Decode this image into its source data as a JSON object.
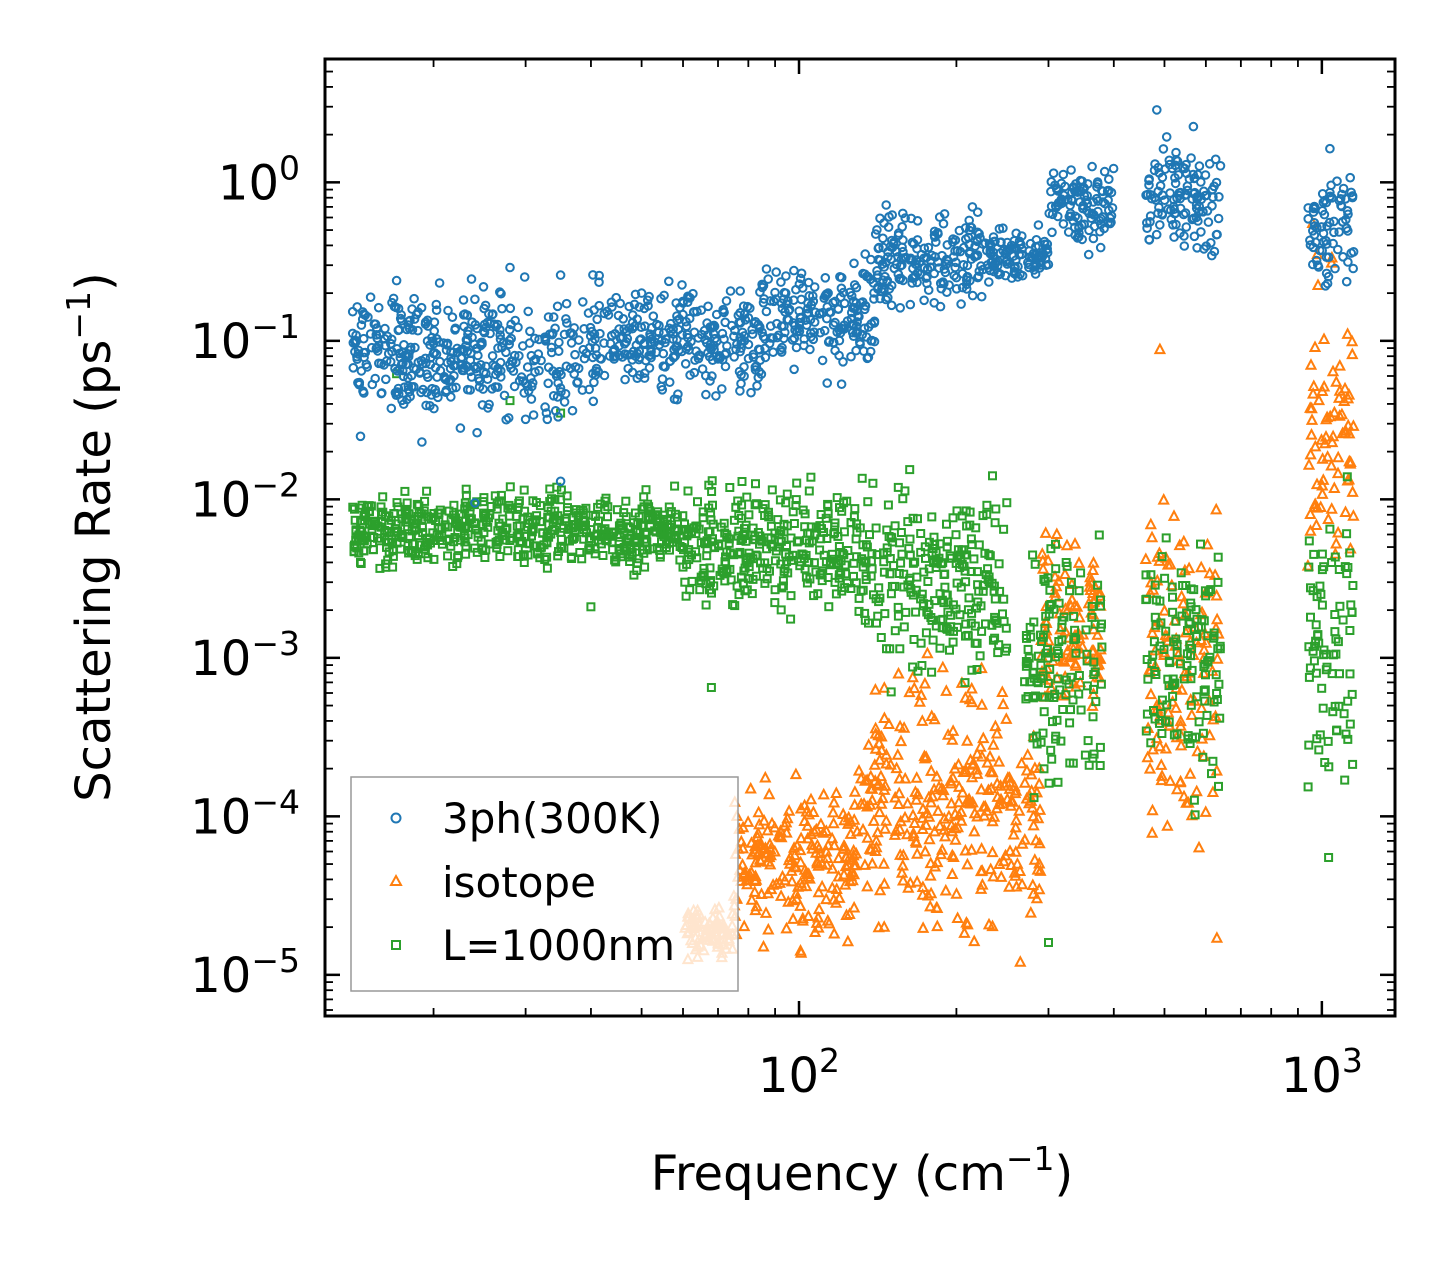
{
  "chart_data": {
    "type": "scatter",
    "xscale": "log",
    "yscale": "log",
    "xlabel": "Frequency (cm",
    "xlabel_sup": "−1",
    "xlabel_end": ")",
    "ylabel": "Scattering Rate (ps",
    "ylabel_sup": "−1",
    "ylabel_end": ")",
    "xlim": [
      12.4,
      1380
    ],
    "ylim": [
      5.5e-06,
      6.0
    ],
    "x_ticks": [
      {
        "value": 100,
        "base": "10",
        "exp": "2"
      },
      {
        "value": 1000,
        "base": "10",
        "exp": "3"
      }
    ],
    "y_ticks": [
      {
        "value": 1,
        "base": "10",
        "exp": "0"
      },
      {
        "value": 0.1,
        "base": "10",
        "exp": "−1"
      },
      {
        "value": 0.01,
        "base": "10",
        "exp": "−2"
      },
      {
        "value": 0.001,
        "base": "10",
        "exp": "−3"
      },
      {
        "value": 0.0001,
        "base": "10",
        "exp": "−4"
      },
      {
        "value": 1e-05,
        "base": "10",
        "exp": "−5"
      }
    ],
    "legend_position": "lower-left",
    "series": [
      {
        "name": "3ph(300K)",
        "marker": "circle",
        "color": "#1f77b4",
        "bands": [
          [
            14,
            40,
            0.022,
            0.3
          ],
          [
            40,
            85,
            0.035,
            0.3
          ],
          [
            85,
            140,
            0.05,
            0.4
          ],
          [
            140,
            230,
            0.12,
            0.85
          ],
          [
            230,
            300,
            0.2,
            0.6
          ],
          [
            300,
            400,
            0.3,
            1.8
          ],
          [
            460,
            640,
            0.22,
            3.0
          ],
          [
            940,
            1150,
            0.16,
            1.7
          ]
        ],
        "points": [
          [
            14.5,
            0.025
          ],
          [
            17,
            0.24
          ],
          [
            19,
            0.023
          ],
          [
            22,
            0.07
          ],
          [
            24,
            0.0095
          ],
          [
            28,
            0.29
          ],
          [
            30,
            0.032
          ],
          [
            33,
            0.032
          ],
          [
            35,
            0.26
          ],
          [
            35,
            0.013
          ]
        ]
      },
      {
        "name": "isotope",
        "marker": "triangle",
        "color": "#ff7f0e",
        "bands": [
          [
            60,
            75,
            1.1e-05,
            3e-05
          ],
          [
            75,
            130,
            1.1e-05,
            0.00025
          ],
          [
            130,
            250,
            1e-05,
            0.0015
          ],
          [
            250,
            290,
            1.2e-05,
            0.0005
          ],
          [
            290,
            380,
            0.0002,
            0.01
          ],
          [
            460,
            640,
            2e-05,
            0.028
          ],
          [
            940,
            1150,
            0.001,
            0.5
          ]
        ],
        "points": [
          [
            490,
            0.088
          ],
          [
            960,
            0.55
          ],
          [
            980,
            0.35
          ],
          [
            630,
            1.7e-05
          ],
          [
            265,
            1.2e-05
          ]
        ]
      },
      {
        "name": "L=1000nm",
        "marker": "square",
        "color": "#2ca02c",
        "bands": [
          [
            14,
            60,
            0.003,
            0.014
          ],
          [
            60,
            130,
            0.0015,
            0.018
          ],
          [
            130,
            250,
            0.0004,
            0.02
          ],
          [
            270,
            380,
            8e-05,
            0.01
          ],
          [
            460,
            640,
            7e-05,
            0.015
          ],
          [
            940,
            1150,
            5e-05,
            0.025
          ]
        ],
        "points": [
          [
            14.5,
            0.004
          ],
          [
            17,
            0.062
          ],
          [
            19,
            0.0075
          ],
          [
            28,
            0.042
          ],
          [
            35,
            0.035
          ],
          [
            40,
            0.0021
          ],
          [
            68,
            0.00065
          ],
          [
            300,
            1.6e-05
          ],
          [
            1030,
            5.5e-05
          ]
        ]
      }
    ]
  }
}
